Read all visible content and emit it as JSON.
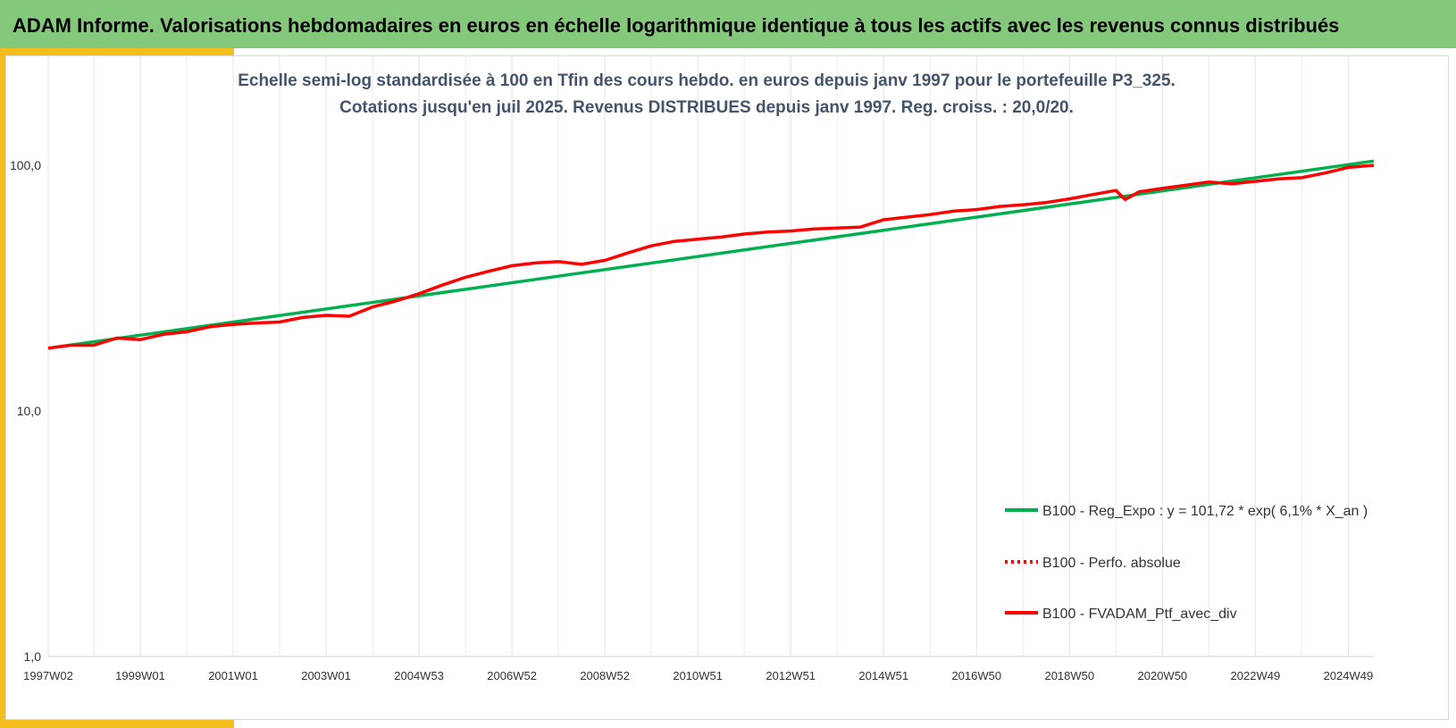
{
  "banner": {
    "title": "ADAM Informe. Valorisations hebdomadaires en euros en échelle logarithmique identique à tous les actifs avec les revenus connus distribués"
  },
  "colors": {
    "banner_bg": "#84c97b",
    "accent_gold": "#f2bd1d",
    "regression_line": "#00b050",
    "portfolio_line": "#ff0000",
    "subtitle_text": "#44546a"
  },
  "chart_data": {
    "type": "line",
    "title_lines": [
      "Echelle semi-log standardisée  à 100 en Tfin des cours hebdo.  en euros depuis janv 1997 pour le portefeuille P3_325.",
      "Cotations jusqu'en juil 2025. Revenus DISTRIBUES depuis janv 1997. Reg. croiss. : 20,0/20."
    ],
    "y_scale": "log",
    "ylim": [
      1,
      200
    ],
    "yticks": [
      {
        "value": 1,
        "label": "1,0"
      },
      {
        "value": 10,
        "label": "10,0"
      },
      {
        "value": 100,
        "label": "100,0"
      }
    ],
    "xlim": [
      1997.02,
      2025.55
    ],
    "xticks": [
      {
        "value": 1997.02,
        "label": "1997W02"
      },
      {
        "value": 1999.0,
        "label": "1999W01"
      },
      {
        "value": 2001.0,
        "label": "2001W01"
      },
      {
        "value": 2003.0,
        "label": "2003W01"
      },
      {
        "value": 2005.0,
        "label": "2004W53"
      },
      {
        "value": 2007.0,
        "label": "2006W52"
      },
      {
        "value": 2009.0,
        "label": "2008W52"
      },
      {
        "value": 2011.0,
        "label": "2010W51"
      },
      {
        "value": 2013.0,
        "label": "2012W51"
      },
      {
        "value": 2015.0,
        "label": "2014W51"
      },
      {
        "value": 2017.0,
        "label": "2016W50"
      },
      {
        "value": 2019.0,
        "label": "2018W50"
      },
      {
        "value": 2021.0,
        "label": "2020W50"
      },
      {
        "value": 2023.0,
        "label": "2022W49"
      },
      {
        "value": 2025.0,
        "label": "2024W49"
      }
    ],
    "grid": "vertical",
    "legend_position": "bottom-right",
    "series": [
      {
        "name": "B100 - Reg_Expo : y = 101,72 * exp( 6,1% *  X_an )",
        "color": "#00b050",
        "style": "solid",
        "x": [
          1997.02,
          2025.55
        ],
        "y": [
          18.0,
          104.0
        ]
      },
      {
        "name": "B100 - Perfo. absolue",
        "color": "#ff0000",
        "style": "dotted",
        "x": [],
        "y": []
      },
      {
        "name": "B100 - FVADAM_Ptf_avec_div",
        "color": "#ff0000",
        "style": "solid",
        "x": [
          1997.02,
          1997.5,
          1998.0,
          1998.5,
          1999.0,
          1999.5,
          2000.0,
          2000.5,
          2001.0,
          2001.5,
          2002.0,
          2002.5,
          2003.0,
          2003.5,
          2004.0,
          2004.5,
          2005.0,
          2005.5,
          2006.0,
          2006.5,
          2007.0,
          2007.5,
          2008.0,
          2008.5,
          2009.0,
          2009.5,
          2010.0,
          2010.5,
          2011.0,
          2011.5,
          2012.0,
          2012.5,
          2013.0,
          2013.5,
          2014.0,
          2014.5,
          2015.0,
          2015.5,
          2016.0,
          2016.5,
          2017.0,
          2017.5,
          2018.0,
          2018.5,
          2019.0,
          2019.5,
          2020.0,
          2020.2,
          2020.5,
          2021.0,
          2021.5,
          2022.0,
          2022.5,
          2023.0,
          2023.5,
          2024.0,
          2024.5,
          2025.0,
          2025.55
        ],
        "y": [
          18.0,
          18.5,
          18.5,
          19.8,
          19.5,
          20.5,
          21.0,
          22.0,
          22.5,
          22.8,
          23.0,
          24.0,
          24.5,
          24.3,
          26.5,
          28.0,
          30.0,
          32.5,
          35.0,
          37.0,
          39.0,
          40.0,
          40.5,
          39.5,
          41.0,
          44.0,
          47.0,
          49.0,
          50.0,
          51.0,
          52.5,
          53.5,
          54.0,
          55.0,
          55.5,
          56.0,
          60.0,
          61.5,
          63.0,
          65.0,
          66.0,
          68.0,
          69.0,
          70.5,
          73.0,
          76.0,
          79.0,
          72.5,
          78.0,
          80.5,
          83.0,
          85.5,
          84.0,
          86.0,
          88.0,
          89.0,
          93.0,
          98.0,
          100.0
        ]
      }
    ]
  }
}
